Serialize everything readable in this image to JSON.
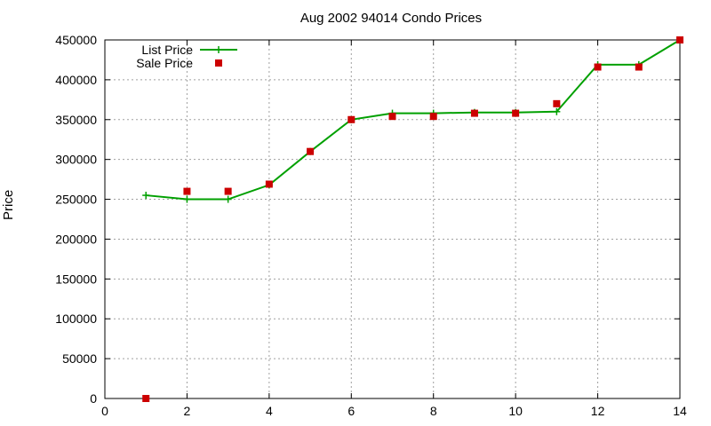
{
  "chart_data": {
    "type": "line",
    "title": "Aug 2002 94014 Condo Prices",
    "xlabel": "",
    "ylabel": "Price",
    "xlim": [
      0,
      14
    ],
    "ylim": [
      0,
      450000
    ],
    "xticks": [
      0,
      2,
      4,
      6,
      8,
      10,
      12,
      14
    ],
    "yticks": [
      0,
      50000,
      100000,
      150000,
      200000,
      250000,
      300000,
      350000,
      400000,
      450000
    ],
    "grid": true,
    "legend_position": "top-left",
    "series": [
      {
        "name": "List Price",
        "style": "linespoints",
        "marker": "plus",
        "color": "#00a000",
        "x": [
          1,
          2,
          3,
          4,
          5,
          6,
          7,
          8,
          9,
          10,
          11,
          12,
          13,
          14
        ],
        "y": [
          255000,
          250000,
          250000,
          268000,
          310000,
          350000,
          358000,
          358000,
          359000,
          359000,
          360000,
          419000,
          419000,
          450000
        ]
      },
      {
        "name": "Sale Price",
        "style": "points",
        "marker": "square",
        "color": "#cc0000",
        "x": [
          1,
          2,
          3,
          4,
          5,
          6,
          7,
          8,
          9,
          10,
          11,
          12,
          13,
          14
        ],
        "y": [
          0,
          260000,
          260000,
          269000,
          310000,
          350000,
          354000,
          354000,
          358000,
          358000,
          370000,
          416000,
          416000,
          450000
        ]
      }
    ]
  }
}
